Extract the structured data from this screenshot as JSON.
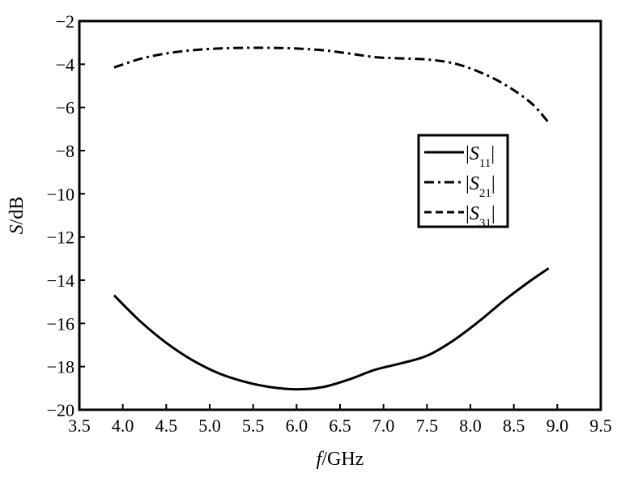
{
  "chart_data": {
    "type": "line",
    "xlabel_italic": "f",
    "xlabel_rest": "/GHz",
    "ylabel_italic": "S",
    "ylabel_rest": "/dB",
    "xlim": [
      3.5,
      9.5
    ],
    "ylim": [
      -20,
      -2
    ],
    "xticks": [
      3.5,
      4.0,
      4.5,
      5.0,
      5.5,
      6.0,
      6.5,
      7.0,
      7.5,
      8.0,
      8.5,
      9.0,
      9.5
    ],
    "xtick_labels": [
      "3.5",
      "4.0",
      "4.5",
      "5.0",
      "5.5",
      "6.0",
      "6.5",
      "7.0",
      "7.5",
      "8.0",
      "8.5",
      "9.0",
      "9.5"
    ],
    "yticks": [
      -20,
      -18,
      -16,
      -14,
      -12,
      -10,
      -8,
      -6,
      -4,
      -2
    ],
    "ytick_labels": [
      "−20",
      "−18",
      "−16",
      "−14",
      "−12",
      "−10",
      "−8",
      "−6",
      "−4",
      "−2"
    ],
    "grid": false,
    "legend_position": "middle-right",
    "series": [
      {
        "name": "|S11|",
        "legend_main": "|S",
        "legend_sub": "11",
        "legend_end": "|",
        "style": "solid",
        "color": "#000000",
        "x": [
          3.9,
          4.2,
          4.5,
          4.8,
          5.1,
          5.4,
          5.7,
          6.0,
          6.3,
          6.6,
          6.9,
          7.2,
          7.5,
          7.8,
          8.1,
          8.4,
          8.7,
          8.9
        ],
        "y": [
          -14.7,
          -15.9,
          -16.9,
          -17.7,
          -18.3,
          -18.7,
          -18.95,
          -19.05,
          -18.95,
          -18.6,
          -18.15,
          -17.85,
          -17.5,
          -16.8,
          -15.9,
          -14.9,
          -14.0,
          -13.45
        ]
      },
      {
        "name": "|S21|",
        "legend_main": "|S",
        "legend_sub": "21",
        "legend_end": "|",
        "style": "dashdot",
        "color": "#000000",
        "x": [
          3.9,
          4.2,
          4.5,
          4.8,
          5.1,
          5.4,
          5.7,
          6.0,
          6.3,
          6.6,
          6.9,
          7.2,
          7.5,
          7.8,
          8.1,
          8.4,
          8.7,
          8.9
        ],
        "y": [
          -4.15,
          -3.75,
          -3.5,
          -3.35,
          -3.27,
          -3.24,
          -3.24,
          -3.27,
          -3.35,
          -3.5,
          -3.67,
          -3.73,
          -3.78,
          -3.95,
          -4.35,
          -4.95,
          -5.8,
          -6.7
        ]
      },
      {
        "name": "|S31|",
        "legend_main": "|S",
        "legend_sub": "31",
        "legend_end": "|",
        "style": "dashed",
        "color": "#000000",
        "x": [],
        "y": []
      }
    ]
  }
}
